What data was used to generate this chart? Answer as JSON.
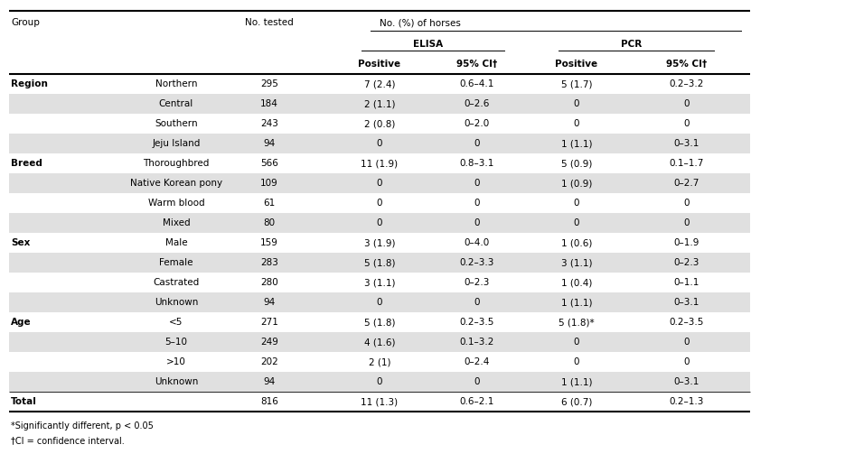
{
  "rows": [
    {
      "group": "Region",
      "subgroup": "Northern",
      "tested": "295",
      "elisa_pos": "7 (2.4)",
      "elisa_ci": "0.6–4.1",
      "pcr_pos": "5 (1.7)",
      "pcr_ci": "0.2–3.2",
      "shaded": false
    },
    {
      "group": "",
      "subgroup": "Central",
      "tested": "184",
      "elisa_pos": "2 (1.1)",
      "elisa_ci": "0–2.6",
      "pcr_pos": "0",
      "pcr_ci": "0",
      "shaded": true
    },
    {
      "group": "",
      "subgroup": "Southern",
      "tested": "243",
      "elisa_pos": "2 (0.8)",
      "elisa_ci": "0–2.0",
      "pcr_pos": "0",
      "pcr_ci": "0",
      "shaded": false
    },
    {
      "group": "",
      "subgroup": "Jeju Island",
      "tested": "94",
      "elisa_pos": "0",
      "elisa_ci": "0",
      "pcr_pos": "1 (1.1)",
      "pcr_ci": "0–3.1",
      "shaded": true
    },
    {
      "group": "Breed",
      "subgroup": "Thoroughbred",
      "tested": "566",
      "elisa_pos": "11 (1.9)",
      "elisa_ci": "0.8–3.1",
      "pcr_pos": "5 (0.9)",
      "pcr_ci": "0.1–1.7",
      "shaded": false
    },
    {
      "group": "",
      "subgroup": "Native Korean pony",
      "tested": "109",
      "elisa_pos": "0",
      "elisa_ci": "0",
      "pcr_pos": "1 (0.9)",
      "pcr_ci": "0–2.7",
      "shaded": true
    },
    {
      "group": "",
      "subgroup": "Warm blood",
      "tested": "61",
      "elisa_pos": "0",
      "elisa_ci": "0",
      "pcr_pos": "0",
      "pcr_ci": "0",
      "shaded": false
    },
    {
      "group": "",
      "subgroup": "Mixed",
      "tested": "80",
      "elisa_pos": "0",
      "elisa_ci": "0",
      "pcr_pos": "0",
      "pcr_ci": "0",
      "shaded": true
    },
    {
      "group": "Sex",
      "subgroup": "Male",
      "tested": "159",
      "elisa_pos": "3 (1.9)",
      "elisa_ci": "0–4.0",
      "pcr_pos": "1 (0.6)",
      "pcr_ci": "0–1.9",
      "shaded": false
    },
    {
      "group": "",
      "subgroup": "Female",
      "tested": "283",
      "elisa_pos": "5 (1.8)",
      "elisa_ci": "0.2–3.3",
      "pcr_pos": "3 (1.1)",
      "pcr_ci": "0–2.3",
      "shaded": true
    },
    {
      "group": "",
      "subgroup": "Castrated",
      "tested": "280",
      "elisa_pos": "3 (1.1)",
      "elisa_ci": "0–2.3",
      "pcr_pos": "1 (0.4)",
      "pcr_ci": "0–1.1",
      "shaded": false
    },
    {
      "group": "",
      "subgroup": "Unknown",
      "tested": "94",
      "elisa_pos": "0",
      "elisa_ci": "0",
      "pcr_pos": "1 (1.1)",
      "pcr_ci": "0–3.1",
      "shaded": true
    },
    {
      "group": "Age",
      "subgroup": "<5",
      "tested": "271",
      "elisa_pos": "5 (1.8)",
      "elisa_ci": "0.2–3.5",
      "pcr_pos": "5 (1.8)*",
      "pcr_ci": "0.2–3.5",
      "shaded": false
    },
    {
      "group": "",
      "subgroup": "5–10",
      "tested": "249",
      "elisa_pos": "4 (1.6)",
      "elisa_ci": "0.1–3.2",
      "pcr_pos": "0",
      "pcr_ci": "0",
      "shaded": true
    },
    {
      "group": "",
      "subgroup": ">10",
      "tested": "202",
      "elisa_pos": "2 (1)",
      "elisa_ci": "0–2.4",
      "pcr_pos": "0",
      "pcr_ci": "0",
      "shaded": false
    },
    {
      "group": "",
      "subgroup": "Unknown",
      "tested": "94",
      "elisa_pos": "0",
      "elisa_ci": "0",
      "pcr_pos": "1 (1.1)",
      "pcr_ci": "0–3.1",
      "shaded": true
    }
  ],
  "total_row": {
    "tested": "816",
    "elisa_pos": "11 (1.3)",
    "elisa_ci": "0.6–2.1",
    "pcr_pos": "6 (0.7)",
    "pcr_ci": "0.2–1.3"
  },
  "footnotes": [
    "*Significantly different, p < 0.05",
    "†CI = confidence interval."
  ],
  "shaded_color": "#e0e0e0",
  "white_color": "#ffffff",
  "bg_color": "#ffffff"
}
